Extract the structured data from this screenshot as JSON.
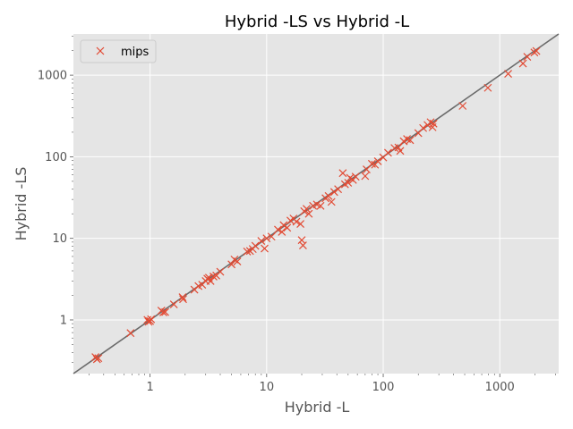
{
  "chart_data": {
    "type": "scatter",
    "title": "Hybrid -LS vs Hybrid -L",
    "xlabel": "Hybrid -L",
    "ylabel": "Hybrid -LS",
    "xscale": "log",
    "yscale": "log",
    "xlim": [
      0.22,
      3200
    ],
    "ylim": [
      0.22,
      3200
    ],
    "xticks": [
      {
        "value": 1,
        "label": "1"
      },
      {
        "value": 10,
        "label": "10"
      },
      {
        "value": 100,
        "label": "100"
      },
      {
        "value": 1000,
        "label": "1000"
      }
    ],
    "yticks": [
      {
        "value": 1,
        "label": "1"
      },
      {
        "value": 10,
        "label": "10"
      },
      {
        "value": 100,
        "label": "100"
      },
      {
        "value": 1000,
        "label": "1000"
      }
    ],
    "grid": true,
    "legend": "upper-left",
    "reference_line": "y = x",
    "series": [
      {
        "name": "mips",
        "marker": "x",
        "color": "#e24a33",
        "points": [
          [
            0.34,
            0.35
          ],
          [
            0.35,
            0.33
          ],
          [
            0.36,
            0.34
          ],
          [
            0.68,
            0.69
          ],
          [
            0.95,
            1.0
          ],
          [
            1.0,
            0.97
          ],
          [
            1.02,
            1.02
          ],
          [
            0.97,
            0.95
          ],
          [
            1.25,
            1.3
          ],
          [
            1.3,
            1.24
          ],
          [
            1.35,
            1.25
          ],
          [
            1.6,
            1.55
          ],
          [
            1.9,
            1.9
          ],
          [
            1.92,
            1.8
          ],
          [
            2.4,
            2.35
          ],
          [
            2.6,
            2.6
          ],
          [
            2.8,
            2.7
          ],
          [
            3.0,
            3.0
          ],
          [
            3.1,
            3.2
          ],
          [
            3.2,
            3.3
          ],
          [
            3.3,
            3.0
          ],
          [
            3.5,
            3.4
          ],
          [
            3.7,
            3.5
          ],
          [
            4.0,
            3.9
          ],
          [
            5.0,
            4.8
          ],
          [
            5.3,
            5.5
          ],
          [
            5.6,
            5.2
          ],
          [
            6.8,
            6.9
          ],
          [
            7.2,
            7.0
          ],
          [
            7.6,
            7.4
          ],
          [
            8.0,
            8.1
          ],
          [
            9.0,
            9.3
          ],
          [
            9.6,
            7.5
          ],
          [
            10.0,
            10.0
          ],
          [
            11.0,
            10.5
          ],
          [
            12.5,
            12.8
          ],
          [
            13.5,
            12.0
          ],
          [
            14.0,
            14.5
          ],
          [
            15.0,
            13.5
          ],
          [
            16.0,
            16.5
          ],
          [
            17.0,
            17.5
          ],
          [
            18.0,
            16.0
          ],
          [
            19.5,
            15.0
          ],
          [
            20.0,
            9.5
          ],
          [
            20.5,
            8.2
          ],
          [
            21.0,
            21.5
          ],
          [
            22.0,
            23.0
          ],
          [
            23.0,
            20.0
          ],
          [
            25.0,
            25.0
          ],
          [
            27.0,
            26.0
          ],
          [
            29.0,
            25.0
          ],
          [
            32.0,
            31.0
          ],
          [
            34.0,
            33.0
          ],
          [
            36.0,
            28.0
          ],
          [
            38.0,
            37.0
          ],
          [
            41.0,
            40.0
          ],
          [
            45.0,
            63.0
          ],
          [
            47.0,
            46.0
          ],
          [
            50.0,
            48.0
          ],
          [
            52.0,
            55.0
          ],
          [
            55.0,
            52.0
          ],
          [
            58.0,
            57.0
          ],
          [
            70.0,
            58.0
          ],
          [
            72.0,
            70.0
          ],
          [
            80.0,
            82.0
          ],
          [
            85.0,
            80.0
          ],
          [
            90.0,
            88.0
          ],
          [
            100.0,
            98.0
          ],
          [
            110.0,
            112.0
          ],
          [
            125.0,
            128.0
          ],
          [
            135.0,
            130.0
          ],
          [
            140.0,
            118.0
          ],
          [
            150.0,
            155.0
          ],
          [
            160.0,
            165.0
          ],
          [
            170.0,
            160.0
          ],
          [
            200.0,
            195.0
          ],
          [
            220.0,
            225.0
          ],
          [
            240.0,
            245.0
          ],
          [
            255.0,
            265.0
          ],
          [
            265.0,
            230.0
          ],
          [
            270.0,
            255.0
          ],
          [
            480.0,
            420.0
          ],
          [
            790.0,
            700.0
          ],
          [
            1180.0,
            1040.0
          ],
          [
            1580.0,
            1390.0
          ],
          [
            1720.0,
            1680.0
          ],
          [
            1980.0,
            1900.0
          ],
          [
            2060.0,
            1980.0
          ]
        ]
      }
    ]
  }
}
